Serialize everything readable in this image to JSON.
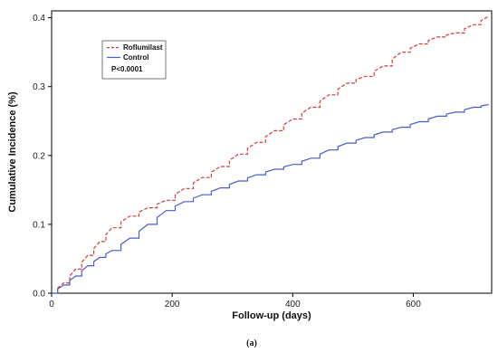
{
  "chart_data": {
    "type": "line",
    "title": "",
    "xlabel": "Follow-up (days)",
    "ylabel": "Cumulative Incidence (%)",
    "xlim": [
      0,
      730
    ],
    "ylim": [
      0,
      0.41
    ],
    "xticks": [
      0,
      200,
      400,
      600
    ],
    "yticks": [
      0.0,
      0.1,
      0.2,
      0.3,
      0.4
    ],
    "xtick_labels": [
      "0",
      "200",
      "400",
      "600"
    ],
    "ytick_labels": [
      "0.0",
      "0.1",
      "0.2",
      "0.3",
      "0.4"
    ],
    "grid": false,
    "legend_position": "top-left",
    "annotation": "P<0.0001",
    "caption": "(a)",
    "series": [
      {
        "name": "Roflumilast",
        "color": "#d23a3a",
        "style": "dashed",
        "x": [
          0,
          20,
          40,
          60,
          80,
          100,
          130,
          160,
          190,
          220,
          250,
          280,
          310,
          340,
          370,
          400,
          430,
          460,
          490,
          520,
          550,
          580,
          610,
          640,
          670,
          700,
          725
        ],
        "y": [
          0,
          0.015,
          0.035,
          0.055,
          0.075,
          0.095,
          0.112,
          0.124,
          0.135,
          0.152,
          0.168,
          0.184,
          0.202,
          0.219,
          0.236,
          0.253,
          0.27,
          0.288,
          0.305,
          0.315,
          0.33,
          0.35,
          0.362,
          0.372,
          0.378,
          0.39,
          0.402
        ]
      },
      {
        "name": "Control",
        "color": "#4a5cc8",
        "style": "solid",
        "x": [
          0,
          20,
          40,
          60,
          80,
          100,
          130,
          160,
          190,
          220,
          250,
          280,
          310,
          340,
          370,
          400,
          430,
          460,
          490,
          520,
          550,
          580,
          610,
          640,
          670,
          700,
          725
        ],
        "y": [
          0,
          0.012,
          0.025,
          0.04,
          0.052,
          0.062,
          0.08,
          0.1,
          0.12,
          0.133,
          0.143,
          0.153,
          0.163,
          0.172,
          0.18,
          0.187,
          0.196,
          0.208,
          0.218,
          0.226,
          0.234,
          0.241,
          0.249,
          0.257,
          0.263,
          0.27,
          0.274
        ]
      }
    ]
  }
}
